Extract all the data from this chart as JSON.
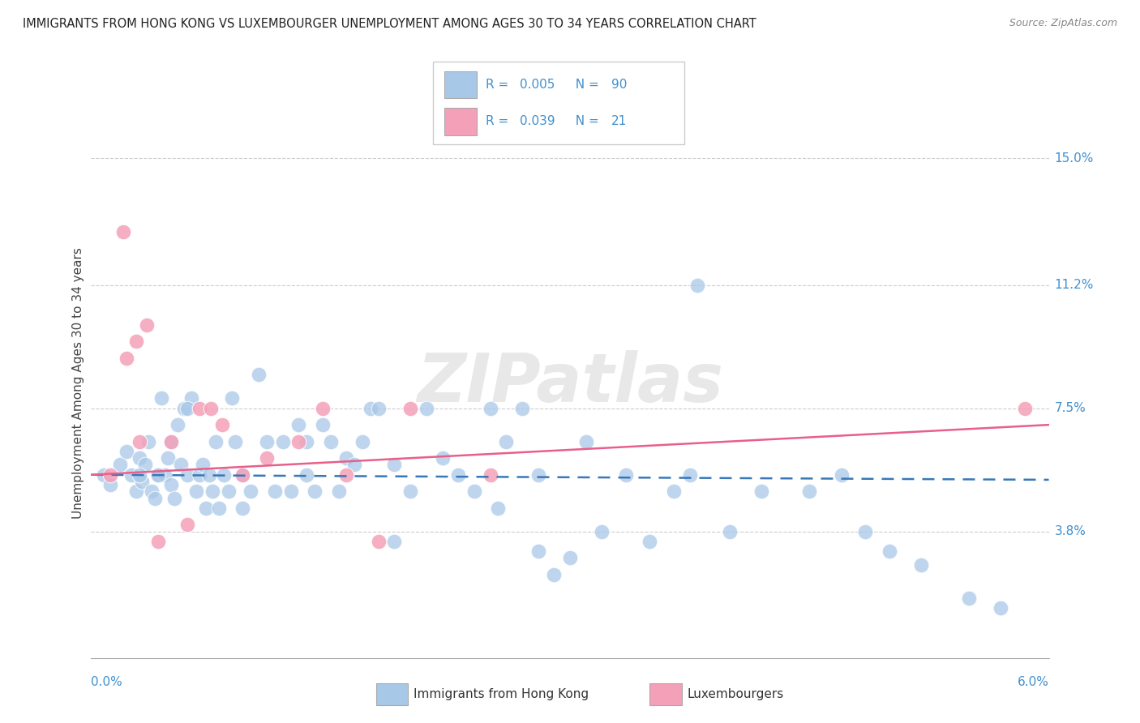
{
  "title": "IMMIGRANTS FROM HONG KONG VS LUXEMBOURGER UNEMPLOYMENT AMONG AGES 30 TO 34 YEARS CORRELATION CHART",
  "source": "Source: ZipAtlas.com",
  "ylabel": "Unemployment Among Ages 30 to 34 years",
  "ytick_values": [
    3.8,
    7.5,
    11.2,
    15.0
  ],
  "ytick_labels": [
    "3.8%",
    "7.5%",
    "11.2%",
    "15.0%"
  ],
  "xlim": [
    0.0,
    6.0
  ],
  "ylim": [
    0.0,
    16.5
  ],
  "blue_color": "#a8c8e8",
  "pink_color": "#f4a0b8",
  "blue_line_color": "#3878b8",
  "pink_line_color": "#e8608a",
  "tick_label_color": "#4090d0",
  "legend_r_color": "#3878b8",
  "legend_text_color": "#3878b8",
  "watermark": "ZIPatlas",
  "blue_scatter_x": [
    0.08,
    0.12,
    0.18,
    0.22,
    0.25,
    0.28,
    0.3,
    0.32,
    0.34,
    0.36,
    0.38,
    0.4,
    0.42,
    0.44,
    0.46,
    0.48,
    0.5,
    0.52,
    0.54,
    0.56,
    0.58,
    0.6,
    0.63,
    0.66,
    0.68,
    0.7,
    0.72,
    0.74,
    0.76,
    0.78,
    0.8,
    0.83,
    0.86,
    0.88,
    0.9,
    0.95,
    1.0,
    1.05,
    1.1,
    1.15,
    1.2,
    1.25,
    1.3,
    1.35,
    1.4,
    1.45,
    1.5,
    1.55,
    1.6,
    1.65,
    1.7,
    1.75,
    1.8,
    1.9,
    2.0,
    2.1,
    2.2,
    2.3,
    2.4,
    2.5,
    2.6,
    2.7,
    2.8,
    2.9,
    3.0,
    3.1,
    3.2,
    3.35,
    3.5,
    3.65,
    3.8,
    4.0,
    4.2,
    4.5,
    4.7,
    4.85,
    5.0,
    5.2,
    5.5,
    5.7,
    3.75,
    2.55,
    1.35,
    0.95,
    0.42,
    0.3,
    1.9,
    2.8,
    0.6,
    0.5
  ],
  "blue_scatter_y": [
    5.5,
    5.2,
    5.8,
    6.2,
    5.5,
    5.0,
    6.0,
    5.3,
    5.8,
    6.5,
    5.0,
    4.8,
    5.5,
    7.8,
    5.5,
    6.0,
    5.2,
    4.8,
    7.0,
    5.8,
    7.5,
    5.5,
    7.8,
    5.0,
    5.5,
    5.8,
    4.5,
    5.5,
    5.0,
    6.5,
    4.5,
    5.5,
    5.0,
    7.8,
    6.5,
    5.5,
    5.0,
    8.5,
    6.5,
    5.0,
    6.5,
    5.0,
    7.0,
    5.5,
    5.0,
    7.0,
    6.5,
    5.0,
    6.0,
    5.8,
    6.5,
    7.5,
    7.5,
    5.8,
    5.0,
    7.5,
    6.0,
    5.5,
    5.0,
    7.5,
    6.5,
    7.5,
    5.5,
    2.5,
    3.0,
    6.5,
    3.8,
    5.5,
    3.5,
    5.0,
    11.2,
    3.8,
    5.0,
    5.0,
    5.5,
    3.8,
    3.2,
    2.8,
    1.8,
    1.5,
    5.5,
    4.5,
    6.5,
    4.5,
    5.5,
    5.5,
    3.5,
    3.2,
    7.5,
    6.5
  ],
  "pink_scatter_x": [
    0.12,
    0.2,
    0.28,
    0.35,
    0.42,
    0.5,
    0.6,
    0.68,
    0.75,
    0.82,
    0.95,
    1.1,
    1.3,
    1.45,
    1.6,
    1.8,
    2.0,
    2.5,
    0.22,
    0.3,
    5.85
  ],
  "pink_scatter_y": [
    5.5,
    12.8,
    9.5,
    10.0,
    3.5,
    6.5,
    4.0,
    7.5,
    7.5,
    7.0,
    5.5,
    6.0,
    6.5,
    7.5,
    5.5,
    3.5,
    7.5,
    5.5,
    9.0,
    6.5,
    7.5
  ],
  "blue_trend_x": [
    0.0,
    6.0
  ],
  "blue_trend_y": [
    5.5,
    5.35
  ],
  "pink_trend_x": [
    0.0,
    6.0
  ],
  "pink_trend_y": [
    5.5,
    7.0
  ]
}
